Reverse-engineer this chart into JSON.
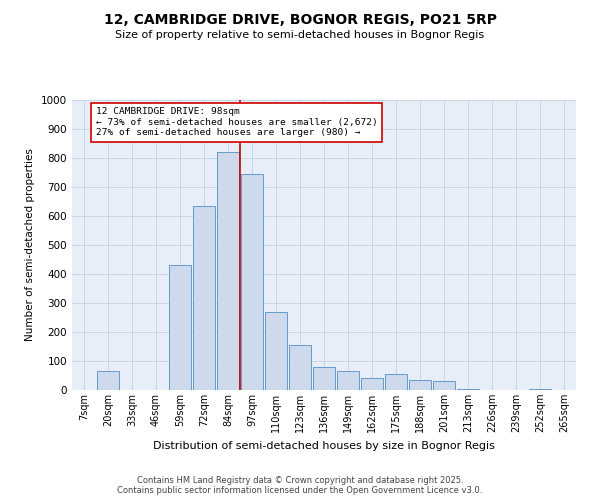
{
  "title": "12, CAMBRIDGE DRIVE, BOGNOR REGIS, PO21 5RP",
  "subtitle": "Size of property relative to semi-detached houses in Bognor Regis",
  "xlabel": "Distribution of semi-detached houses by size in Bognor Regis",
  "ylabel": "Number of semi-detached properties",
  "bins": [
    "7sqm",
    "20sqm",
    "33sqm",
    "46sqm",
    "59sqm",
    "72sqm",
    "84sqm",
    "97sqm",
    "110sqm",
    "123sqm",
    "136sqm",
    "149sqm",
    "162sqm",
    "175sqm",
    "188sqm",
    "201sqm",
    "213sqm",
    "226sqm",
    "239sqm",
    "252sqm",
    "265sqm"
  ],
  "bar_heights": [
    0,
    65,
    0,
    0,
    430,
    635,
    820,
    745,
    270,
    155,
    80,
    65,
    40,
    55,
    35,
    30,
    5,
    0,
    0,
    5,
    0
  ],
  "bar_color": "#ccdaeb",
  "bar_edge_color": "#6699cc",
  "property_bin_index": 7,
  "annotation_title": "12 CAMBRIDGE DRIVE: 98sqm",
  "annotation_line1": "← 73% of semi-detached houses are smaller (2,672)",
  "annotation_line2": "27% of semi-detached houses are larger (980) →",
  "annotation_box_color": "#ffffff",
  "annotation_box_edge": "#cc0000",
  "vline_color": "#cc0000",
  "ylim": [
    0,
    1000
  ],
  "yticks": [
    0,
    100,
    200,
    300,
    400,
    500,
    600,
    700,
    800,
    900,
    1000
  ],
  "grid_color": "#c8d4e8",
  "bg_color": "#e8eef8",
  "footer1": "Contains HM Land Registry data © Crown copyright and database right 2025.",
  "footer2": "Contains public sector information licensed under the Open Government Licence v3.0."
}
